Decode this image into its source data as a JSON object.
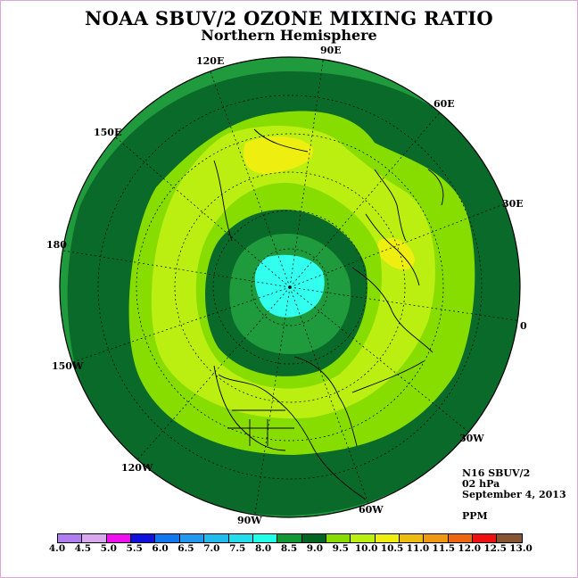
{
  "title": "NOAA SBUV/2 OZONE MIXING RATIO",
  "subtitle": "Northern Hemisphere",
  "info": {
    "instrument": "N16 SBUV/2",
    "level": "02 hPa",
    "date": "September 4, 2013",
    "units": "PPM"
  },
  "longitude_labels": [
    {
      "id": "90e",
      "text": "90E"
    },
    {
      "id": "60e",
      "text": "60E"
    },
    {
      "id": "30e",
      "text": "30E"
    },
    {
      "id": "0",
      "text": "0"
    },
    {
      "id": "30w",
      "text": "30W"
    },
    {
      "id": "60w",
      "text": "60W"
    },
    {
      "id": "90w",
      "text": "90W"
    },
    {
      "id": "120w",
      "text": "120W"
    },
    {
      "id": "150w",
      "text": "150W"
    },
    {
      "id": "180",
      "text": "180"
    },
    {
      "id": "150e",
      "text": "150E"
    },
    {
      "id": "120e",
      "text": "120E"
    }
  ],
  "colorbar": {
    "ticks": [
      "4.0",
      "4.5",
      "5.0",
      "5.5",
      "6.0",
      "6.5",
      "7.0",
      "7.5",
      "8.0",
      "8.5",
      "9.0",
      "9.5",
      "10.0",
      "10.5",
      "11.0",
      "11.5",
      "12.0",
      "12.5",
      "13.0"
    ],
    "colors": [
      "#b07ef0",
      "#d9a9f0",
      "#ee11ee",
      "#1111dd",
      "#1177ee",
      "#2299ee",
      "#22bbee",
      "#22ddee",
      "#22ffe6",
      "#119933",
      "#006622",
      "#88dd00",
      "#bbee11",
      "#eeee11",
      "#eebb11",
      "#ee9911",
      "#ee6611",
      "#ee1111",
      "#885533"
    ]
  },
  "contour_colors": {
    "band_8_0_8_5": "#1f9a3c",
    "band_8_5_9_0": "#0a6a2a",
    "band_9_0_9_5": "#88dd00",
    "band_9_5_10_0": "#bbee11",
    "band_10_0_10_5": "#eeee11",
    "band_7_5_8_0": "#33ffee"
  }
}
